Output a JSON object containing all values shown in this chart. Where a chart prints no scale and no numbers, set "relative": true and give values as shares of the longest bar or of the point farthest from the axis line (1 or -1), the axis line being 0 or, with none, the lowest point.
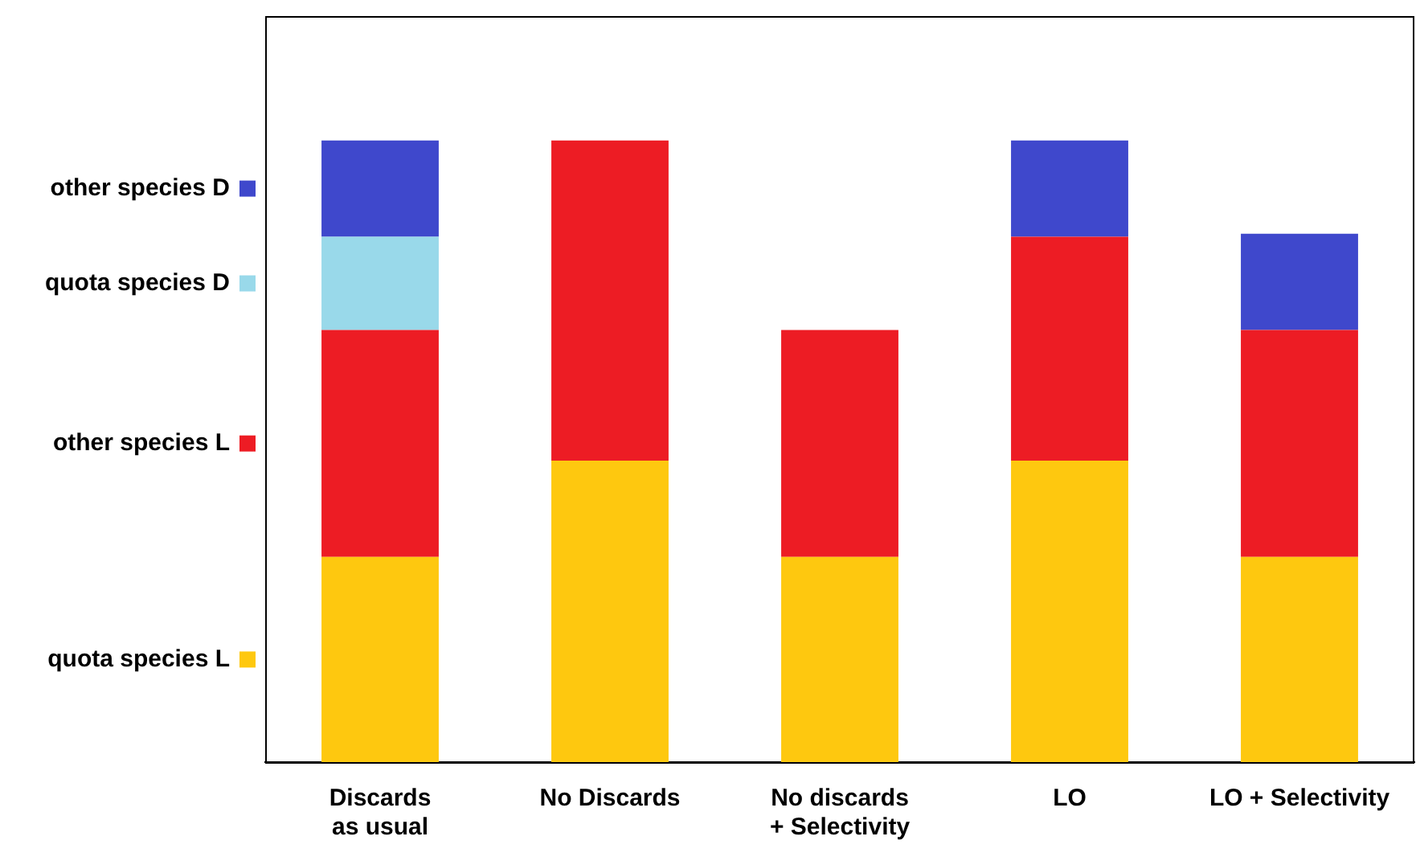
{
  "chart_data": {
    "type": "bar",
    "stacked": true,
    "relative": true,
    "legend": "left",
    "grid": false,
    "categories": [
      "Discards\nas usual",
      "No Discards",
      "No discards\n+ Selectivity",
      "LO",
      "LO + Selectivity"
    ],
    "series": [
      {
        "name": "quota species L",
        "color": "#fec80f",
        "values": [
          0.33,
          0.485,
          0.33,
          0.485,
          0.33
        ]
      },
      {
        "name": "other species L",
        "color": "#ed1c24",
        "values": [
          0.365,
          0.515,
          0.365,
          0.36,
          0.365
        ]
      },
      {
        "name": "quota species D",
        "color": "#99d9ea",
        "values": [
          0.15,
          null,
          null,
          null,
          null
        ]
      },
      {
        "name": "other species D",
        "color": "#3f48cc",
        "values": [
          0.155,
          null,
          null,
          0.155,
          0.155
        ]
      }
    ]
  }
}
